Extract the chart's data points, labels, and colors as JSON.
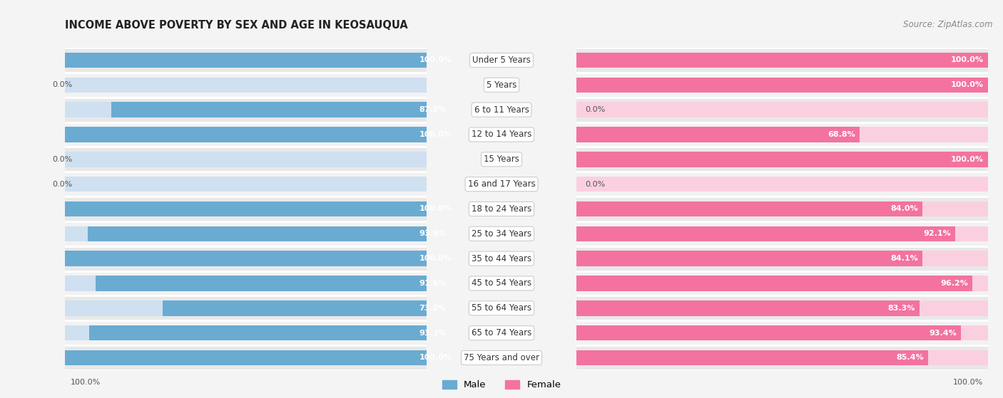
{
  "title": "INCOME ABOVE POVERTY BY SEX AND AGE IN KEOSAUQUA",
  "source": "Source: ZipAtlas.com",
  "categories": [
    "Under 5 Years",
    "5 Years",
    "6 to 11 Years",
    "12 to 14 Years",
    "15 Years",
    "16 and 17 Years",
    "18 to 24 Years",
    "25 to 34 Years",
    "35 to 44 Years",
    "45 to 54 Years",
    "55 to 64 Years",
    "65 to 74 Years",
    "75 Years and over"
  ],
  "male": [
    100.0,
    0.0,
    87.2,
    100.0,
    0.0,
    0.0,
    100.0,
    93.8,
    100.0,
    91.6,
    73.0,
    93.3,
    100.0
  ],
  "female": [
    100.0,
    100.0,
    0.0,
    68.8,
    100.0,
    0.0,
    84.0,
    92.1,
    84.1,
    96.2,
    83.3,
    93.4,
    85.4
  ],
  "male_color": "#6aabd2",
  "female_color": "#f472a0",
  "male_bg_color": "#cfe0f0",
  "female_bg_color": "#fad0e0",
  "row_bg_color": "#efefef",
  "fig_bg_color": "#f4f4f4",
  "bar_height": 0.62,
  "max_val": 100.0,
  "label_fontsize": 8.5,
  "value_fontsize": 8.0,
  "title_fontsize": 10.5,
  "source_fontsize": 8.5
}
